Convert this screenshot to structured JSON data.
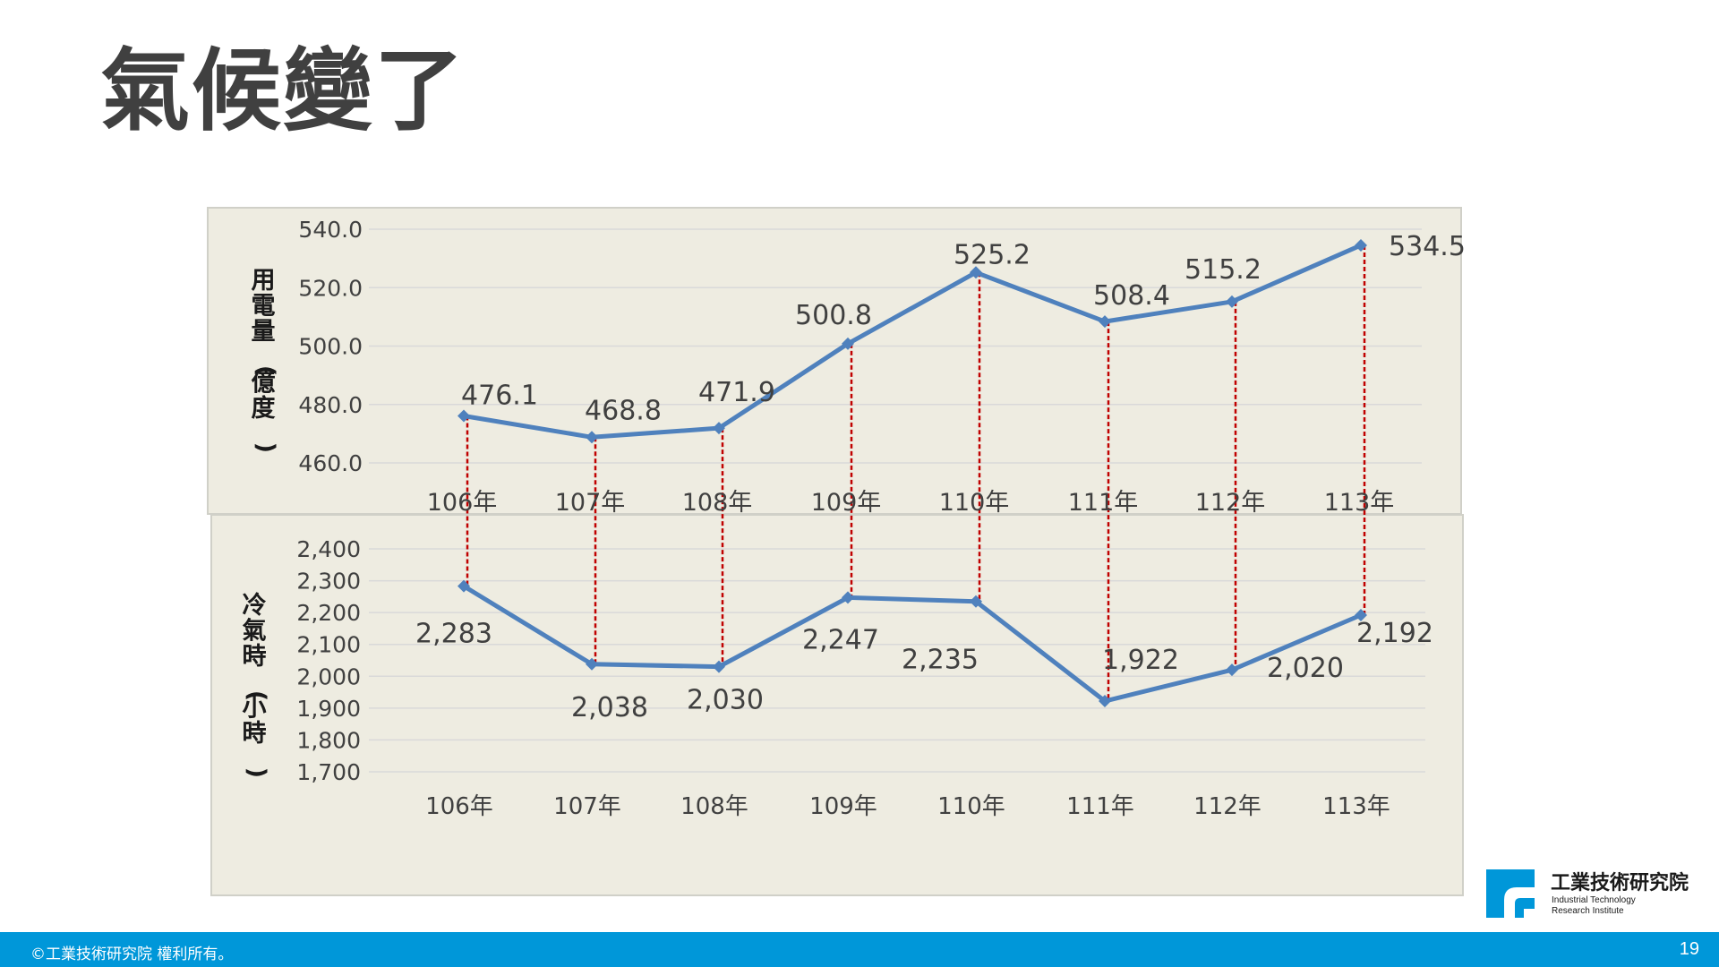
{
  "title": "氣候變了",
  "chart_data": [
    {
      "type": "line",
      "categories": [
        "106年",
        "107年",
        "108年",
        "109年",
        "110年",
        "111年",
        "112年",
        "113年"
      ],
      "series": [
        {
          "name": "用電量(億度)",
          "values": [
            476.1,
            468.8,
            471.9,
            500.8,
            525.2,
            508.4,
            515.2,
            534.5
          ]
        }
      ],
      "value_labels": [
        "476.1",
        "468.8",
        "471.9",
        "500.8",
        "525.2",
        "508.4",
        "515.2",
        "534.5"
      ],
      "ylabel": "用電量(億度)",
      "ylim": [
        460,
        540
      ],
      "yticks": [
        540,
        520,
        500,
        480,
        460
      ],
      "ytick_labels": [
        "540.0",
        "520.0",
        "500.0",
        "480.0",
        "460.0"
      ],
      "grid": true,
      "line_color": "#4f81bd"
    },
    {
      "type": "line",
      "categories": [
        "106年",
        "107年",
        "108年",
        "109年",
        "110年",
        "111年",
        "112年",
        "113年"
      ],
      "series": [
        {
          "name": "冷氣時(小時)",
          "values": [
            2283,
            2038,
            2030,
            2247,
            2235,
            1922,
            2020,
            2192
          ]
        }
      ],
      "value_labels": [
        "2,283",
        "2,038",
        "2,030",
        "2,247",
        "2,235",
        "1,922",
        "2,020",
        "2,192"
      ],
      "ylabel": "冷氣時(小時)",
      "ylim": [
        1700,
        2400
      ],
      "yticks": [
        2400,
        2300,
        2200,
        2100,
        2000,
        1900,
        1800,
        1700
      ],
      "ytick_labels": [
        "2,400",
        "2,300",
        "2,200",
        "2,100",
        "2,000",
        "1,900",
        "1,800",
        "1,700"
      ],
      "grid": true,
      "line_color": "#4f81bd"
    }
  ],
  "connector_color": "#c00000",
  "panel_color": "#eeece1",
  "logo": {
    "name_cn": "工業技術研究院",
    "name_en_1": "Industrial Technology",
    "name_en_2": "Research Institute"
  },
  "footer": {
    "copyright": "©工業技術研究院  權利所有。",
    "page_number": "19"
  }
}
